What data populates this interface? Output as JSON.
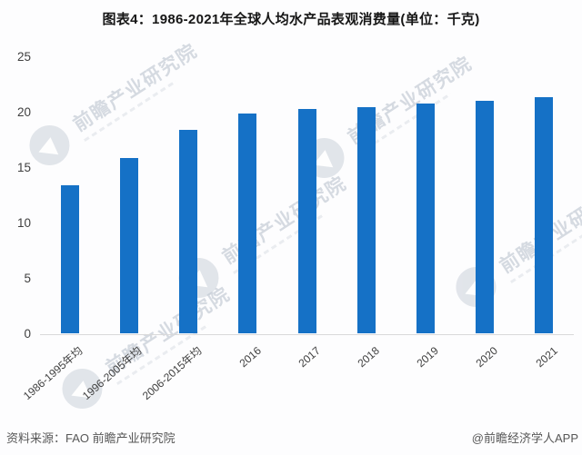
{
  "title": "图表4：1986-2021年全球人均水产品表观消费量(单位：千克)",
  "footer": {
    "source": "资料来源：FAO 前瞻产业研究院",
    "credit": "@前瞻经济学人APP"
  },
  "watermark": {
    "text": "前瞻产业研究院"
  },
  "colors": {
    "bar": "#1571c6",
    "axis_text": "#3f3f3f",
    "baseline": "#d9d9d9",
    "title": "#161616",
    "footer": "#575757",
    "watermark": "#bcc4cf"
  },
  "chart_data": {
    "type": "bar",
    "title": "图表4：1986-2021年全球人均水产品表观消费量(单位：千克)",
    "categories": [
      "1986-1995年均",
      "1996-2005年均",
      "2006-2015年均",
      "2016",
      "2017",
      "2018",
      "2019",
      "2020",
      "2021"
    ],
    "values": [
      13.4,
      15.9,
      18.4,
      19.9,
      20.3,
      20.5,
      20.8,
      21.1,
      21.4
    ],
    "unit": "千克",
    "xlabel": "",
    "ylabel": "",
    "ylim": [
      0,
      25
    ],
    "yticks": [
      0,
      5,
      10,
      15,
      20,
      25
    ],
    "grid": false,
    "legend": null,
    "x_tick_rotation_deg": 41
  }
}
